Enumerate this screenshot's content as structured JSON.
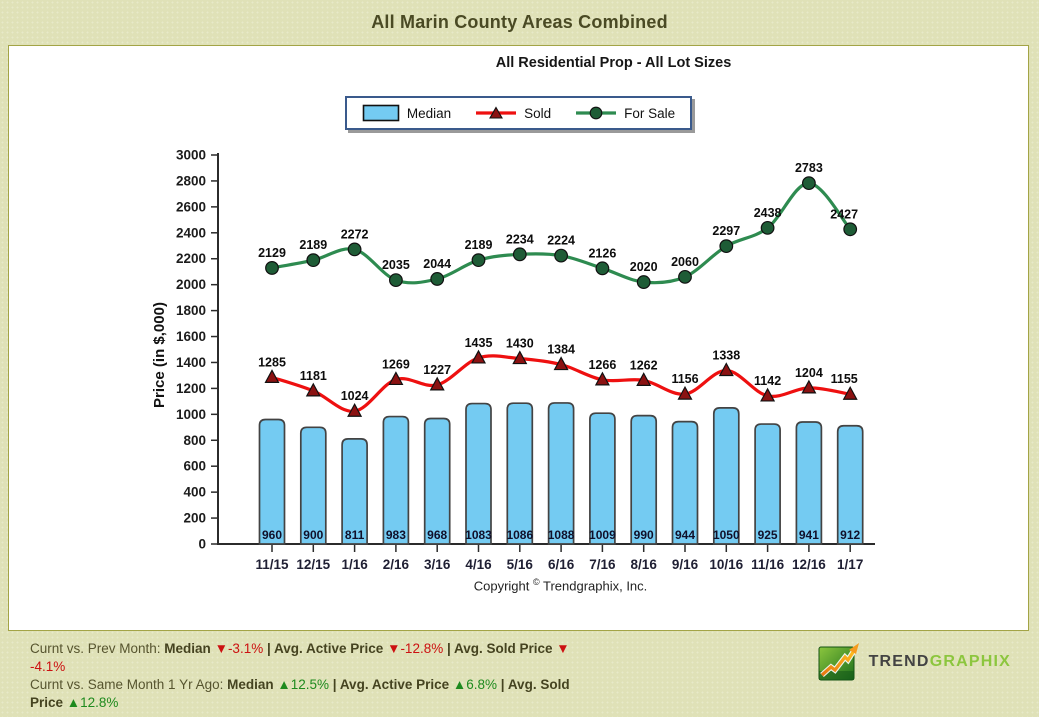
{
  "page": {
    "title": "All Marin County Areas Combined"
  },
  "chart": {
    "copyright_prefix": "Copyright ",
    "copyright_symbol": "©",
    "copyright_suffix": " Trendgraphix, Inc."
  },
  "chart_data": {
    "type": "bar+line",
    "title": "All Residential Prop - All Lot Sizes",
    "xlabel": "",
    "ylabel": "Price (in $,000)",
    "ylim": [
      0,
      3000
    ],
    "ytick_step": 200,
    "grid": false,
    "legend_position": "top-center",
    "categories": [
      "11/15",
      "12/15",
      "1/16",
      "2/16",
      "3/16",
      "4/16",
      "5/16",
      "6/16",
      "7/16",
      "8/16",
      "9/16",
      "10/16",
      "11/16",
      "12/16",
      "1/17"
    ],
    "series": [
      {
        "name": "Median",
        "type": "bar",
        "marker": "rect",
        "color": "#74cbf2",
        "marker_color": "#434343",
        "values": [
          960,
          900,
          811,
          983,
          968,
          1083,
          1086,
          1088,
          1009,
          990,
          944,
          1050,
          925,
          941,
          912
        ]
      },
      {
        "name": "Sold",
        "type": "line",
        "marker": "triangle",
        "color": "#ee1010",
        "marker_color": "#8b1212",
        "values": [
          1285,
          1181,
          1024,
          1269,
          1227,
          1435,
          1430,
          1384,
          1266,
          1262,
          1156,
          1338,
          1142,
          1204,
          1155
        ]
      },
      {
        "name": "For Sale",
        "type": "line",
        "marker": "circle",
        "color": "#2e8b50",
        "marker_color": "#1e5c36",
        "values": [
          2129,
          2189,
          2272,
          2035,
          2044,
          2189,
          2234,
          2224,
          2126,
          2020,
          2060,
          2297,
          2438,
          2783,
          2427
        ]
      }
    ]
  },
  "footer": {
    "lines": [
      [
        {
          "t": "Curnt vs. Prev Month: "
        },
        {
          "t": "Median ",
          "b": 1
        },
        {
          "t": "▼",
          "c": "red"
        },
        {
          "t": "-3.1%",
          "c": "red"
        },
        {
          "t": " | ",
          "b": 1
        },
        {
          "t": "Avg. Active Price ",
          "b": 1
        },
        {
          "t": "▼",
          "c": "red"
        },
        {
          "t": "-12.8%",
          "c": "red"
        },
        {
          "t": " | ",
          "b": 1
        },
        {
          "t": "Avg. Sold Price ",
          "b": 1
        },
        {
          "t": "▼",
          "c": "red"
        }
      ],
      [
        {
          "t": "-4.1%",
          "c": "red"
        }
      ],
      [
        {
          "t": "Curnt vs. Same Month 1 Yr Ago: "
        },
        {
          "t": "Median ",
          "b": 1
        },
        {
          "t": "▲",
          "c": "green"
        },
        {
          "t": "12.5%",
          "c": "green"
        },
        {
          "t": " | ",
          "b": 1
        },
        {
          "t": "Avg. Active Price ",
          "b": 1
        },
        {
          "t": "▲",
          "c": "green"
        },
        {
          "t": "6.8%",
          "c": "green"
        },
        {
          "t": " | ",
          "b": 1
        },
        {
          "t": "Avg. Sold",
          "b": 1
        }
      ],
      [
        {
          "t": "Price ",
          "b": 1
        },
        {
          "t": "▲",
          "c": "green"
        },
        {
          "t": "12.8%",
          "c": "green"
        }
      ]
    ],
    "logo": {
      "part1": "TREND",
      "part2": "GRAPHIX"
    }
  },
  "colors": {
    "page_bg": "#dfe1b7",
    "panel_border": "#a3a446",
    "title_text": "#4a4a24",
    "legend_border": "#3a5a8c",
    "axis": "#2b2b2b",
    "stat_red": "#cc1111",
    "stat_green": "#1e8a1e",
    "logo_green": "#8cc63e"
  }
}
